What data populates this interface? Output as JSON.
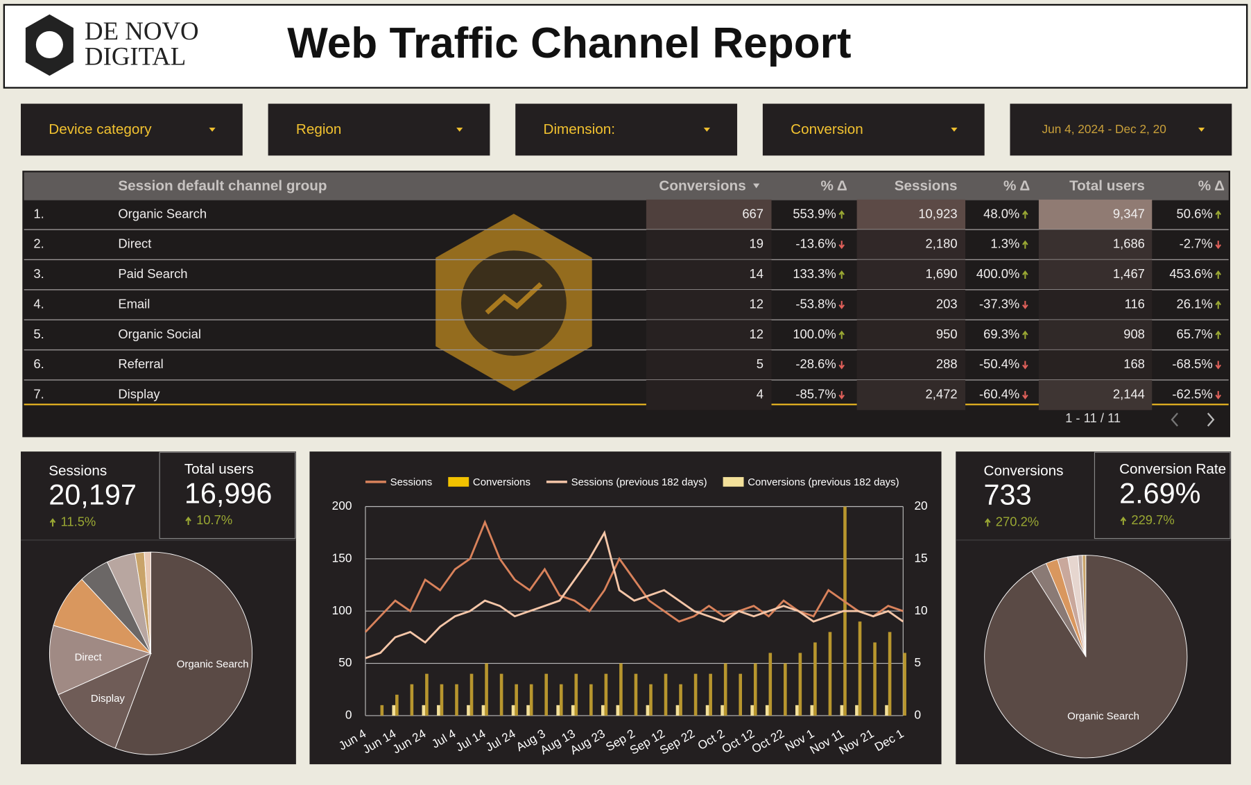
{
  "header": {
    "logo": [
      "DE NOVO",
      "DIGITAL"
    ],
    "title": "Web Traffic Channel Report"
  },
  "filters": [
    "Device category",
    "Region",
    "Dimension:",
    "Conversion",
    "Jun 4, 2024 - Dec 2, 20"
  ],
  "table": {
    "columns": [
      "Session default channel group",
      "Conversions",
      "% Δ",
      "Sessions",
      "% Δ",
      "Total users",
      "% Δ"
    ],
    "rows": [
      [
        "1.",
        "Organic Search",
        "667",
        "553.9%",
        "10,923",
        "48.0%",
        "9,347",
        "50.6%"
      ],
      [
        "2.",
        "Direct",
        "19",
        "-13.6%",
        "2,180",
        "1.3%",
        "1,686",
        "-2.7%"
      ],
      [
        "3.",
        "Paid Search",
        "14",
        "133.3%",
        "1,690",
        "400.0%",
        "1,467",
        "453.6%"
      ],
      [
        "4.",
        "Email",
        "12",
        "-53.8%",
        "203",
        "-37.3%",
        "116",
        "26.1%"
      ],
      [
        "5.",
        "Organic Social",
        "12",
        "100.0%",
        "950",
        "69.3%",
        "908",
        "65.7%"
      ],
      [
        "6.",
        "Referral",
        "5",
        "-28.6%",
        "288",
        "-50.4%",
        "168",
        "-68.5%"
      ],
      [
        "7.",
        "Display",
        "4",
        "-85.7%",
        "2,472",
        "-60.4%",
        "2,144",
        "-62.5%"
      ]
    ],
    "pagination": "1 - 11 / 11"
  },
  "scorecards": [
    {
      "label": "Sessions",
      "value": "20,197",
      "change": "11.5%"
    },
    {
      "label": "Total users",
      "value": "16,996",
      "change": "10.7%"
    },
    {
      "label": "Conversions",
      "value": "733",
      "change": "270.2%"
    },
    {
      "label": "Conversion Rate",
      "value": "2.69%",
      "change": "229.7%"
    }
  ],
  "chart_data": [
    {
      "type": "line",
      "categories": [
        "Jun 4",
        null,
        "Jun 14",
        null,
        "Jun 24",
        null,
        "Jul 4",
        null,
        "Jul 14",
        null,
        "Jul 24",
        null,
        "Aug 3",
        null,
        "Aug 13",
        null,
        "Aug 23",
        null,
        "Sep 2",
        null,
        "Sep 12",
        null,
        "Sep 22",
        null,
        "Oct 2",
        null,
        "Oct 12",
        null,
        "Oct 22",
        null,
        "Nov 1",
        null,
        "Nov 11",
        null,
        "Nov 21",
        null,
        "Dec 1"
      ],
      "series": [
        {
          "name": "Sessions",
          "color": "#d9825b",
          "kind": "line",
          "values": [
            80,
            95,
            110,
            100,
            130,
            120,
            140,
            150,
            185,
            150,
            130,
            120,
            140,
            115,
            110,
            100,
            120,
            150,
            130,
            110,
            100,
            90,
            95,
            105,
            95,
            100,
            105,
            95,
            110,
            100,
            95,
            120,
            110,
            100,
            95,
            105,
            100
          ]
        },
        {
          "name": "Conversions",
          "color": "#b8962e",
          "kind": "bar",
          "axis": "y2",
          "values": [
            0,
            1,
            2,
            3,
            4,
            3,
            3,
            4,
            5,
            4,
            3,
            3,
            4,
            3,
            4,
            3,
            4,
            5,
            4,
            3,
            4,
            3,
            4,
            4,
            5,
            4,
            5,
            6,
            5,
            6,
            7,
            8,
            20,
            9,
            7,
            8,
            6
          ]
        },
        {
          "name": "Sessions (previous 182 days)",
          "color": "#f5c6a8",
          "kind": "line",
          "values": [
            55,
            60,
            75,
            80,
            70,
            85,
            95,
            100,
            110,
            105,
            95,
            100,
            105,
            110,
            130,
            150,
            175,
            120,
            110,
            115,
            120,
            110,
            100,
            95,
            90,
            100,
            95,
            100,
            105,
            100,
            90,
            95,
            100,
            100,
            95,
            100,
            90
          ]
        },
        {
          "name": "Conversions (previous 182 days)",
          "color": "#f3e09a",
          "kind": "bar",
          "axis": "y2",
          "values": [
            0,
            0,
            1,
            0,
            1,
            1,
            0,
            1,
            1,
            0,
            1,
            1,
            0,
            1,
            1,
            0,
            1,
            1,
            0,
            1,
            0,
            1,
            0,
            1,
            1,
            0,
            1,
            1,
            0,
            1,
            1,
            0,
            1,
            1,
            0,
            1,
            0
          ]
        }
      ],
      "ylim": [
        0,
        200
      ],
      "yticks": [
        0,
        50,
        100,
        150,
        200
      ],
      "y2lim": [
        0,
        20
      ],
      "y2ticks": [
        0,
        5,
        10,
        15,
        20
      ],
      "grid": true,
      "legend": "top"
    },
    {
      "type": "pie",
      "categories": [
        "Organic Search",
        "Display",
        "Direct",
        null,
        null,
        null,
        null,
        null
      ],
      "values": [
        10923,
        2472,
        2180,
        1690,
        950,
        900,
        288,
        203
      ],
      "colors": [
        "#5a4a45",
        "#6f5c57",
        "#a08a84",
        "#d9975e",
        "#6b6766",
        "#b8a6a0",
        "#c9a46a",
        "#e8c9b5"
      ]
    },
    {
      "type": "pie",
      "categories": [
        "Organic Search",
        null,
        null,
        null,
        null,
        null,
        null
      ],
      "values": [
        667,
        19,
        14,
        12,
        12,
        5,
        4
      ],
      "colors": [
        "#5a4a45",
        "#8a7a75",
        "#d9975e",
        "#c9a89c",
        "#e6d6cf",
        "#b8a6a0",
        "#c9a46a"
      ]
    }
  ]
}
